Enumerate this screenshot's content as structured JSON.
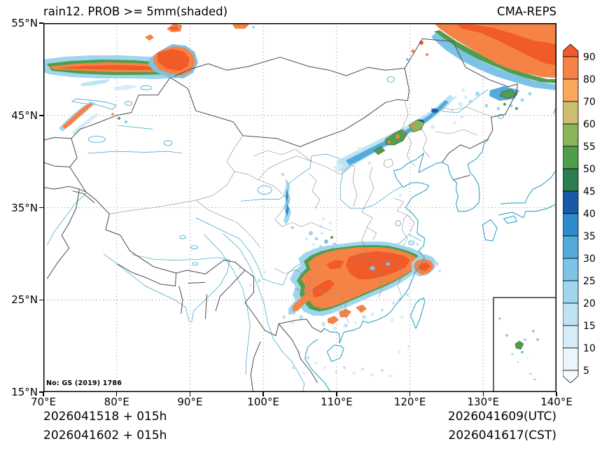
{
  "header": {
    "title": "rain12. PROB >= 5mm(shaded)",
    "model": "CMA-REPS"
  },
  "axes": {
    "lat_labels": [
      "55°N",
      "45°N",
      "35°N",
      "25°N",
      "15°N"
    ],
    "lon_labels": [
      "70°E",
      "80°E",
      "90°E",
      "100°E",
      "110°E",
      "120°E",
      "130°E",
      "140°E"
    ]
  },
  "colorbar": {
    "levels": [
      "90",
      "80",
      "70",
      "60",
      "55",
      "50",
      "45",
      "40",
      "35",
      "30",
      "25",
      "20",
      "15",
      "10",
      "5"
    ],
    "palette": {
      "gt90": "#f15a29",
      "p80": "#f58345",
      "p70": "#f9a85c",
      "p60": "#cdbd72",
      "p55": "#8ab455",
      "p50": "#4f9e4c",
      "p45": "#2c7d4f",
      "p40": "#1959a8",
      "p35": "#2d8ccd",
      "p30": "#52abdc",
      "p25": "#7cc3e6",
      "p20": "#a0d5ee",
      "p15": "#bfe3f4",
      "p10": "#d6edf8",
      "p5": "#eaf6fb",
      "lt5": "#f4fbfd"
    }
  },
  "footer": {
    "init_utc": "2026041518 + 015h",
    "init_cst": "2026041602 + 015h",
    "valid_utc": "2026041609(UTC)",
    "valid_cst": "2026041617(CST)"
  },
  "map": {
    "license": "No: GS (2019) 1786",
    "colors": {
      "coast": "#2fa3c7",
      "border": "#4a4a4a",
      "province": "#8a8a8a",
      "grid": "#9a9a9a"
    }
  },
  "chart_data": {
    "type": "heatmap",
    "title": "rain12. PROB >= 5mm(shaded)",
    "model": "CMA-REPS",
    "lon_range": [
      70,
      140
    ],
    "lat_range": [
      15,
      55
    ],
    "prob_levels_percent": [
      5,
      10,
      15,
      20,
      25,
      30,
      35,
      40,
      45,
      50,
      55,
      60,
      70,
      80,
      90
    ],
    "legend_position": "right",
    "grid": "dotted 10-degree",
    "notable_regions": [
      {
        "area": "N Xinjiang border band ~49-51N, 70-90E",
        "max_prob": ">90"
      },
      {
        "area": "Tianshan streak ~43.5-46N, 72-77E",
        "max_prob": "80"
      },
      {
        "area": "NE corner ~48-55N, 124-140E",
        "max_prob": ">90"
      },
      {
        "area": "NE China diagonal band ~40-46N, 110-126E",
        "max_prob": "45-80"
      },
      {
        "area": "Gansu streak ~33-38N, 103E",
        "max_prob": "30-40"
      },
      {
        "area": "S China system ~24-31N, 104-122E",
        "max_prob": ">90"
      },
      {
        "area": "South China Sea inset specks ~17-20N, 134-136E",
        "max_prob": "50"
      }
    ]
  }
}
